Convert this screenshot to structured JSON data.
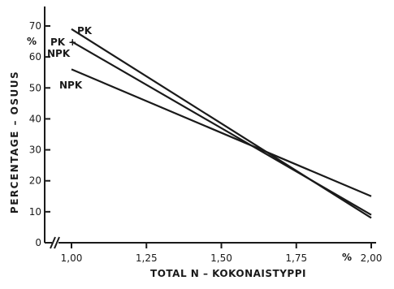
{
  "chart_data": {
    "type": "line",
    "xlabel": "TOTAL  N – KOKONAISTYPPI",
    "x_unit": "%",
    "ylabel": "PERCENTAGE – OSUUS",
    "y_unit": "%",
    "xlim": [
      1.0,
      2.0
    ],
    "ylim": [
      0,
      70
    ],
    "x_ticks": [
      "1,00",
      "1,25",
      "1,50",
      "1,75",
      "2,00"
    ],
    "y_ticks": [
      "0",
      "10",
      "20",
      "30",
      "40",
      "50",
      "60",
      "70"
    ],
    "axis_break": true,
    "grid": false,
    "legend": "none",
    "series": [
      {
        "name": "PK",
        "x": [
          1.0,
          2.0
        ],
        "y": [
          69,
          8
        ]
      },
      {
        "name": "NPK",
        "x": [
          1.0,
          2.0
        ],
        "y": [
          65,
          9
        ]
      },
      {
        "name": "NPK",
        "x": [
          1.0,
          2.0
        ],
        "y": [
          56,
          15
        ]
      }
    ],
    "annotations": [
      "PK",
      "PK +",
      "NPK",
      "NPK"
    ]
  }
}
